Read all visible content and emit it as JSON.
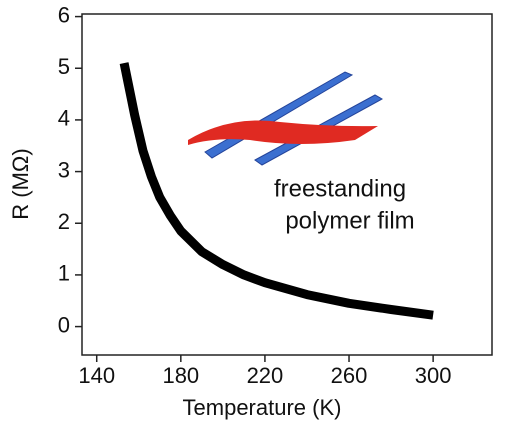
{
  "chart_data": {
    "type": "line",
    "x_label": "Temperature (K)",
    "y_label": "R (MΩ)",
    "annotation": [
      "freestanding",
      "polymer film"
    ],
    "x": [
      153,
      155,
      158,
      162,
      166,
      170,
      175,
      180,
      190,
      200,
      210,
      220,
      240,
      260,
      280,
      300
    ],
    "series": [
      {
        "color": "#000000",
        "values": [
          5.1,
          4.7,
          4.1,
          3.4,
          2.9,
          2.5,
          2.15,
          1.85,
          1.45,
          1.2,
          1.0,
          0.85,
          0.62,
          0.45,
          0.33,
          0.22
        ]
      }
    ],
    "xlim": [
      133,
      328
    ],
    "ylim": [
      -0.55,
      6.05
    ],
    "xticks": [
      140,
      180,
      220,
      260,
      300
    ],
    "yticks": [
      0,
      1,
      2,
      3,
      4,
      5,
      6
    ]
  }
}
